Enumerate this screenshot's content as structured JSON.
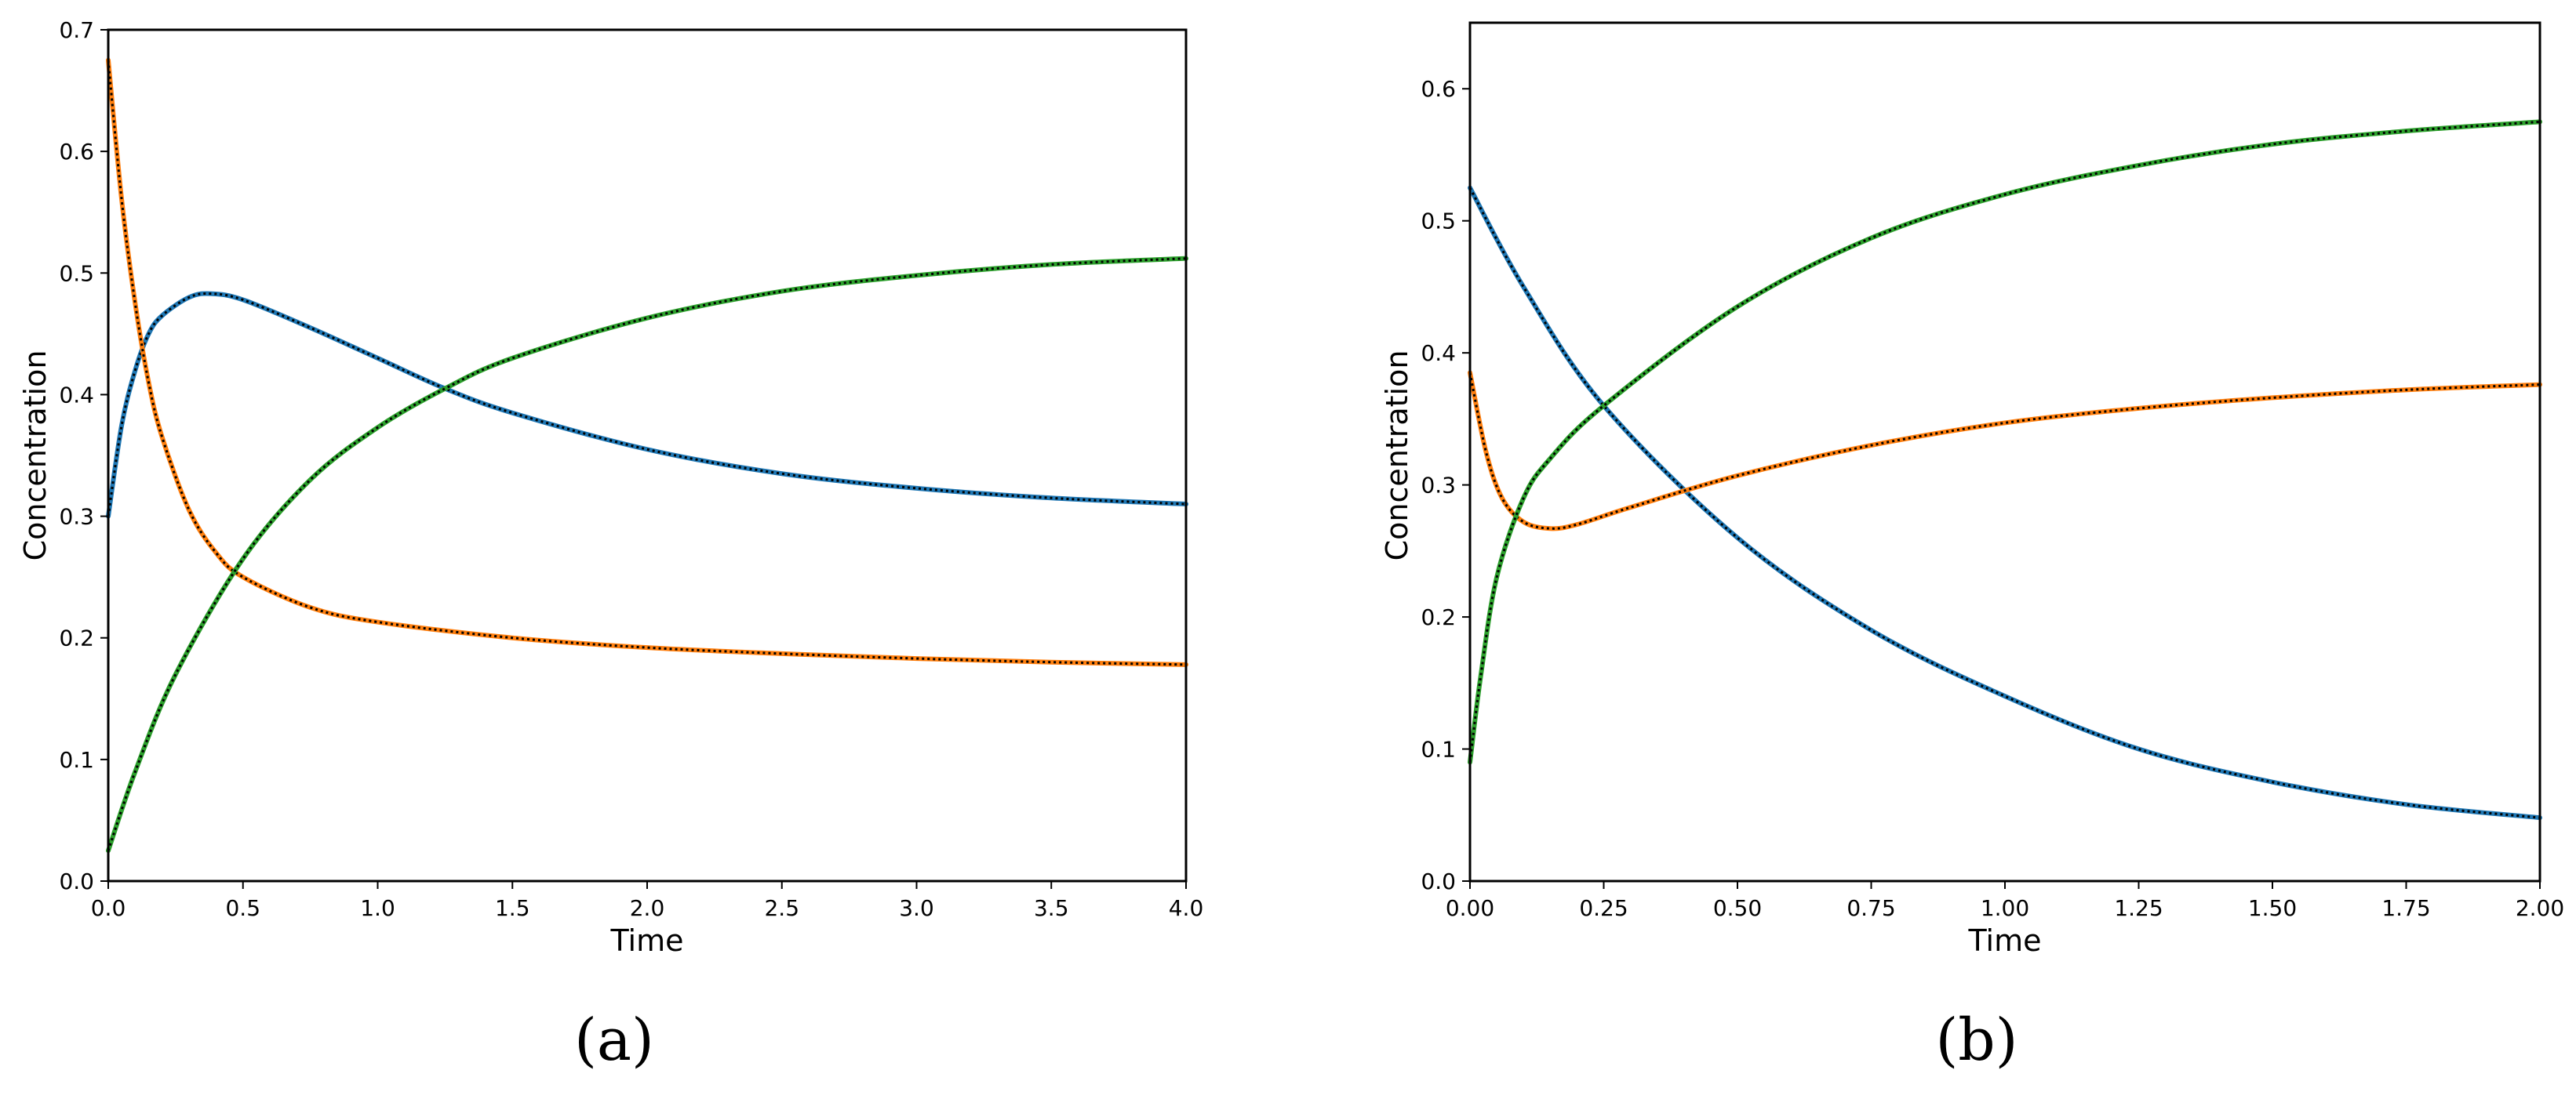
{
  "colors": {
    "series1": "#1f77b4",
    "series2": "#ff7f0e",
    "series3": "#2ca02c",
    "overlay": "#000000",
    "axes": "#000000",
    "background": "#ffffff"
  },
  "chart_data": [
    {
      "type": "line",
      "panel_label": "(a)",
      "xlabel": "Time",
      "ylabel": "Concentration",
      "xlim": [
        0,
        4
      ],
      "ylim": [
        0,
        0.7
      ],
      "xticks": [
        "0.0",
        "0.5",
        "1.0",
        "1.5",
        "2.0",
        "2.5",
        "3.0",
        "3.5",
        "4.0"
      ],
      "yticks": [
        "0.0",
        "0.1",
        "0.2",
        "0.3",
        "0.4",
        "0.5",
        "0.6",
        "0.7"
      ],
      "grid": false,
      "legend": "none",
      "overlay_style": "black dotted line over each series",
      "series": [
        {
          "color": "#1f77b4",
          "x": [
            0,
            0.05,
            0.1,
            0.15,
            0.2,
            0.3,
            0.38,
            0.5,
            0.75,
            1.0,
            1.25,
            1.5,
            2.0,
            2.5,
            3.0,
            3.5,
            4.0
          ],
          "y": [
            0.3,
            0.375,
            0.42,
            0.45,
            0.465,
            0.48,
            0.483,
            0.478,
            0.455,
            0.43,
            0.405,
            0.385,
            0.355,
            0.335,
            0.323,
            0.315,
            0.31
          ]
        },
        {
          "color": "#ff7f0e",
          "x": [
            0,
            0.05,
            0.1,
            0.15,
            0.2,
            0.3,
            0.4,
            0.5,
            0.75,
            1.0,
            1.5,
            2.0,
            2.5,
            3.0,
            3.5,
            4.0
          ],
          "y": [
            0.675,
            0.56,
            0.475,
            0.41,
            0.365,
            0.305,
            0.27,
            0.25,
            0.225,
            0.213,
            0.2,
            0.192,
            0.187,
            0.183,
            0.18,
            0.178
          ]
        },
        {
          "color": "#2ca02c",
          "x": [
            0,
            0.1,
            0.25,
            0.5,
            0.75,
            1.0,
            1.25,
            1.5,
            2.0,
            2.5,
            3.0,
            3.5,
            4.0
          ],
          "y": [
            0.025,
            0.09,
            0.17,
            0.265,
            0.33,
            0.373,
            0.405,
            0.43,
            0.463,
            0.485,
            0.498,
            0.507,
            0.512
          ]
        }
      ]
    },
    {
      "type": "line",
      "panel_label": "(b)",
      "xlabel": "Time",
      "ylabel": "Concentration",
      "xlim": [
        0,
        2
      ],
      "ylim": [
        0,
        0.65
      ],
      "xticks": [
        "0.00",
        "0.25",
        "0.50",
        "0.75",
        "1.00",
        "1.25",
        "1.50",
        "1.75",
        "2.00"
      ],
      "yticks": [
        "0.0",
        "0.1",
        "0.2",
        "0.3",
        "0.4",
        "0.5",
        "0.6"
      ],
      "grid": false,
      "legend": "none",
      "overlay_style": "black dotted line over each series",
      "series": [
        {
          "color": "#1f77b4",
          "x": [
            0,
            0.1,
            0.25,
            0.5,
            0.75,
            1.0,
            1.25,
            1.5,
            1.75,
            2.0
          ],
          "y": [
            0.525,
            0.45,
            0.36,
            0.26,
            0.19,
            0.14,
            0.1,
            0.075,
            0.058,
            0.048
          ]
        },
        {
          "color": "#ff7f0e",
          "x": [
            0,
            0.03,
            0.06,
            0.1,
            0.15,
            0.2,
            0.3,
            0.5,
            0.75,
            1.0,
            1.25,
            1.5,
            1.75,
            2.0
          ],
          "y": [
            0.385,
            0.325,
            0.29,
            0.272,
            0.267,
            0.27,
            0.283,
            0.307,
            0.33,
            0.347,
            0.358,
            0.366,
            0.372,
            0.376
          ]
        },
        {
          "color": "#2ca02c",
          "x": [
            0,
            0.02,
            0.05,
            0.1,
            0.15,
            0.25,
            0.5,
            0.75,
            1.0,
            1.25,
            1.5,
            1.75,
            2.0
          ],
          "y": [
            0.09,
            0.155,
            0.23,
            0.29,
            0.32,
            0.36,
            0.435,
            0.487,
            0.52,
            0.542,
            0.558,
            0.568,
            0.575
          ]
        }
      ]
    }
  ]
}
